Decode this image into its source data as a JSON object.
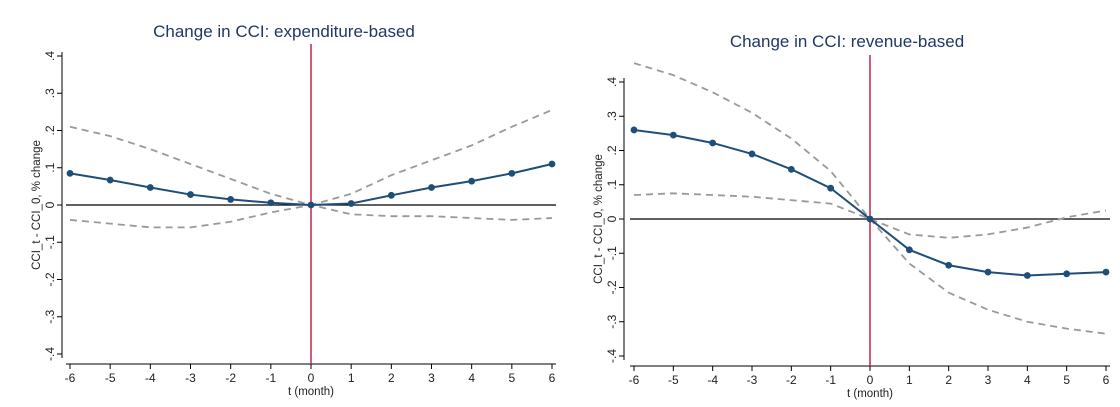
{
  "chart_data": [
    {
      "type": "line",
      "title": "Change in CCI: expenditure-based",
      "xlabel": "t (month)",
      "ylabel": "CCI_t - CCI_0, % change",
      "x": [
        -6,
        -5,
        -4,
        -3,
        -2,
        -1,
        0,
        1,
        2,
        3,
        4,
        5,
        6
      ],
      "xticks": [
        "-6",
        "-5",
        "-4",
        "-3",
        "-2",
        "-1",
        "0",
        "1",
        "2",
        "3",
        "4",
        "5",
        "6"
      ],
      "ylim": [
        -0.4,
        0.4
      ],
      "yticks": [
        ".4",
        ".3",
        ".2",
        ".1",
        "0",
        "-.1",
        "-.2",
        "-.3",
        "-.4"
      ],
      "series": [
        {
          "values": [
            0.085,
            0.067,
            0.047,
            0.028,
            0.015,
            0.006,
            0.0,
            0.004,
            0.026,
            0.047,
            0.064,
            0.085,
            0.11
          ],
          "style": "solid-markers",
          "color": "#1f4e79"
        },
        {
          "values": [
            0.21,
            0.185,
            0.15,
            0.11,
            0.07,
            0.03,
            0.0,
            0.03,
            0.08,
            0.12,
            0.16,
            0.21,
            0.255
          ],
          "style": "dashed",
          "color": "#999999"
        },
        {
          "values": [
            -0.04,
            -0.05,
            -0.06,
            -0.06,
            -0.045,
            -0.02,
            0.0,
            -0.025,
            -0.03,
            -0.03,
            -0.035,
            -0.04,
            -0.035
          ],
          "style": "dashed",
          "color": "#999999"
        }
      ],
      "vline_x": 0,
      "hline_y": 0,
      "grid": false,
      "colors": {
        "estimate": "#1f4e79",
        "ci": "#999999",
        "vline": "#c0264f",
        "hline": "#000000"
      }
    },
    {
      "type": "line",
      "title": "Change in CCI: revenue-based",
      "xlabel": "t (month)",
      "ylabel": "CCI_t - CCI_0, % change",
      "x": [
        -6,
        -5,
        -4,
        -3,
        -2,
        -1,
        0,
        1,
        2,
        3,
        4,
        5,
        6
      ],
      "xticks": [
        "-6",
        "-5",
        "-4",
        "-3",
        "-2",
        "-1",
        "0",
        "1",
        "2",
        "3",
        "4",
        "5",
        "6"
      ],
      "ylim": [
        -0.4,
        0.4
      ],
      "yticks": [
        ".4",
        ".3",
        ".2",
        ".1",
        "0",
        "-.1",
        "-.2",
        "-.3",
        "-.4"
      ],
      "series": [
        {
          "values": [
            0.26,
            0.245,
            0.222,
            0.19,
            0.145,
            0.09,
            0.0,
            -0.09,
            -0.135,
            -0.155,
            -0.165,
            -0.16,
            -0.155
          ],
          "style": "solid-markers",
          "color": "#1f4e79"
        },
        {
          "values": [
            0.455,
            0.42,
            0.37,
            0.31,
            0.235,
            0.14,
            0.0,
            -0.13,
            -0.215,
            -0.265,
            -0.3,
            -0.32,
            -0.335
          ],
          "style": "dashed",
          "color": "#999999"
        },
        {
          "values": [
            0.07,
            0.075,
            0.07,
            0.065,
            0.055,
            0.045,
            0.0,
            -0.045,
            -0.055,
            -0.045,
            -0.025,
            0.005,
            0.025
          ],
          "style": "dashed",
          "color": "#999999"
        }
      ],
      "vline_x": 0,
      "hline_y": 0,
      "grid": false,
      "colors": {
        "estimate": "#1f4e79",
        "ci": "#999999",
        "vline": "#c0264f",
        "hline": "#000000"
      }
    }
  ]
}
